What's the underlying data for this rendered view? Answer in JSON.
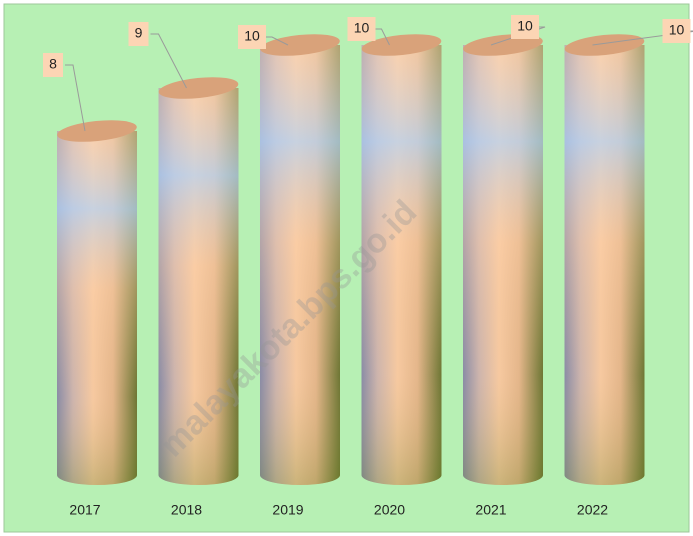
{
  "chart_data": {
    "type": "cylinder",
    "categories": [
      "2017",
      "2018",
      "2019",
      "2020",
      "2021",
      "2022"
    ],
    "values": [
      8,
      9,
      10,
      10,
      10,
      10
    ],
    "watermark": "malayakota.bps.go.id"
  }
}
